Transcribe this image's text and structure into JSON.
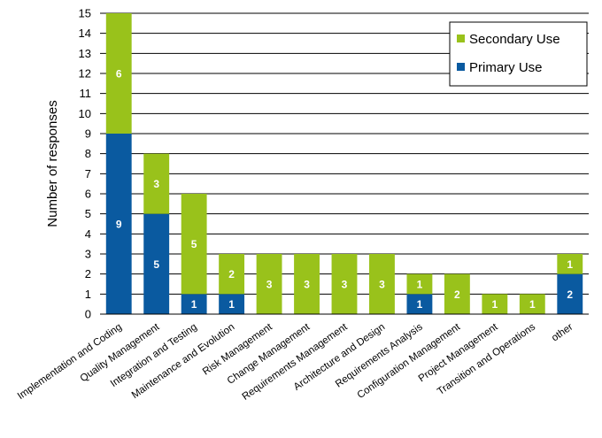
{
  "chart_data": {
    "type": "bar",
    "stacked": true,
    "ylabel": "Number of responses",
    "ylim": [
      0,
      15
    ],
    "yticks": [
      0,
      1,
      2,
      3,
      4,
      5,
      6,
      7,
      8,
      9,
      10,
      11,
      12,
      13,
      14,
      15
    ],
    "grid": true,
    "legend_position": "top-right",
    "categories": [
      "Implementation and Coding",
      "Quality Management",
      "Integration and Testing",
      "Maintenance and Evolution",
      "Risk Management",
      "Change Management",
      "Requirements Management",
      "Architecture and Design",
      "Requirements Analysis",
      "Configuration Management",
      "Project Management",
      "Transition and Operations",
      "other"
    ],
    "series": [
      {
        "name": "Primary Use",
        "color": "#0a5aa0",
        "values": [
          9,
          5,
          1,
          1,
          0,
          0,
          0,
          0,
          1,
          0,
          0,
          0,
          2
        ]
      },
      {
        "name": "Secondary Use",
        "color": "#99c21b",
        "values": [
          6,
          3,
          5,
          2,
          3,
          3,
          3,
          3,
          1,
          2,
          1,
          1,
          1
        ]
      }
    ],
    "legend_order": [
      "Secondary Use",
      "Primary Use"
    ]
  }
}
